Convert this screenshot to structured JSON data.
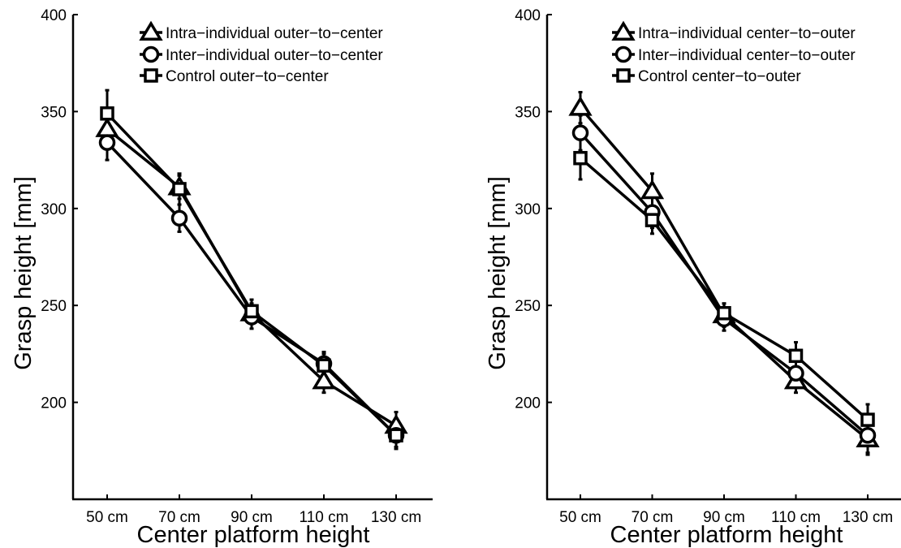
{
  "chart_data": [
    {
      "type": "line",
      "title": "",
      "xlabel": "Center platform height",
      "ylabel": "Grasp height [mm]",
      "categories": [
        "50 cm",
        "70 cm",
        "90 cm",
        "110 cm",
        "130 cm"
      ],
      "ylim": [
        150,
        400
      ],
      "yticks": [
        "200",
        "250",
        "300",
        "350",
        "400"
      ],
      "grid": false,
      "legend_position": "top-right",
      "series": [
        {
          "name": "Intra−individual outer−to−center",
          "marker": "triangle",
          "values": [
            341,
            311,
            246,
            211,
            188
          ],
          "errors": [
            8,
            6,
            5,
            6,
            7
          ]
        },
        {
          "name": "Inter−individual outer−to−center",
          "marker": "circle",
          "values": [
            334,
            295,
            244,
            220,
            183
          ],
          "errors": [
            9,
            7,
            6,
            6,
            6
          ]
        },
        {
          "name": "Control outer−to−center",
          "marker": "square",
          "values": [
            349,
            310,
            247,
            219,
            183
          ],
          "errors": [
            12,
            8,
            6,
            6,
            7
          ]
        }
      ]
    },
    {
      "type": "line",
      "title": "",
      "xlabel": "Center platform height",
      "ylabel": "Grasp height [mm]",
      "categories": [
        "50 cm",
        "70 cm",
        "90 cm",
        "110 cm",
        "130 cm"
      ],
      "ylim": [
        150,
        400
      ],
      "yticks": [
        "200",
        "250",
        "300",
        "350",
        "400"
      ],
      "grid": false,
      "legend_position": "top-right",
      "series": [
        {
          "name": "Intra−individual center−to−outer",
          "marker": "triangle",
          "values": [
            352,
            309,
            245,
            211,
            181
          ],
          "errors": [
            8,
            9,
            6,
            6,
            7
          ]
        },
        {
          "name": "Inter−individual center−to−outer",
          "marker": "circle",
          "values": [
            339,
            298,
            243,
            215,
            183
          ],
          "errors": [
            9,
            8,
            6,
            6,
            10
          ]
        },
        {
          "name": "Control center−to−outer",
          "marker": "square",
          "values": [
            326,
            294,
            246,
            224,
            191
          ],
          "errors": [
            11,
            7,
            5,
            7,
            8
          ]
        }
      ]
    }
  ]
}
